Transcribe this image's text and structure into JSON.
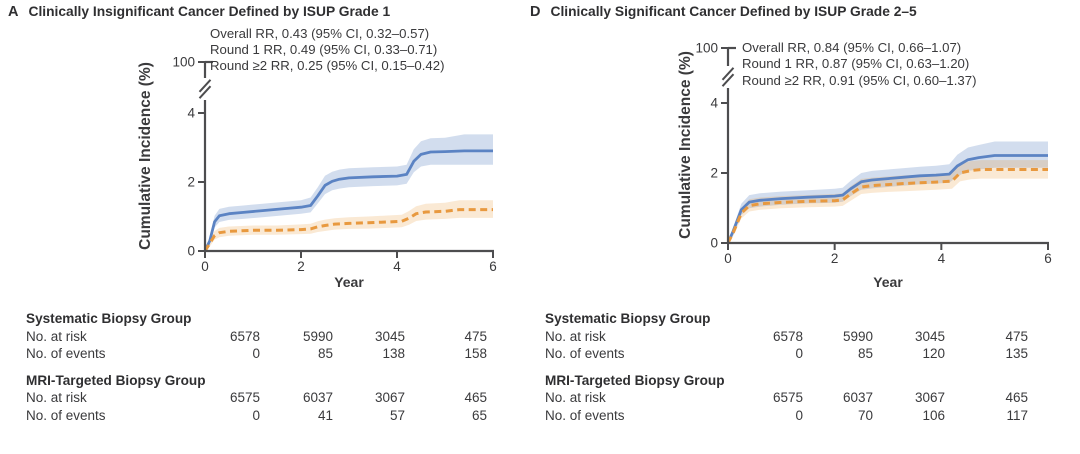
{
  "panels": [
    {
      "letter": "A",
      "title": "Clinically Insignificant Cancer Defined by ISUP Grade 1",
      "table": {
        "groups": [
          {
            "name": "Systematic Biopsy Group",
            "rows": [
              {
                "label": "No. at risk",
                "values": [
                  "6578",
                  "5990",
                  "3045",
                  "475"
                ]
              },
              {
                "label": "No. of events",
                "values": [
                  "0",
                  "85",
                  "138",
                  "158"
                ]
              }
            ]
          },
          {
            "name": "MRI-Targeted Biopsy Group",
            "rows": [
              {
                "label": "No. at risk",
                "values": [
                  "6575",
                  "6037",
                  "3067",
                  "465"
                ]
              },
              {
                "label": "No. of events",
                "values": [
                  "0",
                  "41",
                  "57",
                  "65"
                ]
              }
            ]
          }
        ]
      }
    },
    {
      "letter": "D",
      "title": "Clinically Significant Cancer Defined by ISUP Grade 2–5",
      "table": {
        "groups": [
          {
            "name": "Systematic Biopsy Group",
            "rows": [
              {
                "label": "No. at risk",
                "values": [
                  "6578",
                  "5990",
                  "3045",
                  "475"
                ]
              },
              {
                "label": "No. of events",
                "values": [
                  "0",
                  "85",
                  "120",
                  "135"
                ]
              }
            ]
          },
          {
            "name": "MRI-Targeted Biopsy Group",
            "rows": [
              {
                "label": "No. at risk",
                "values": [
                  "6575",
                  "6037",
                  "3067",
                  "465"
                ]
              },
              {
                "label": "No. of events",
                "values": [
                  "0",
                  "70",
                  "106",
                  "117"
                ]
              }
            ]
          }
        ]
      }
    }
  ],
  "chart_data": [
    {
      "type": "line",
      "title": "Clinically Insignificant Cancer Defined by ISUP Grade 1",
      "xlabel": "Year",
      "ylabel": "Cumulative Incidence (%)",
      "xlim": [
        0,
        6
      ],
      "ylim": [
        0,
        4.7
      ],
      "axis_break_top_label": "100",
      "xticks": [
        0,
        2,
        4,
        6
      ],
      "yticks": [
        0,
        2,
        4
      ],
      "grid": false,
      "legend_position": "none",
      "annotations": [
        "Overall RR, 0.43 (95% CI, 0.32–0.57)",
        "Round 1 RR, 0.49 (95% CI, 0.33–0.71)",
        "Round ≥2 RR, 0.25 (95% CI, 0.15–0.42)"
      ],
      "series": [
        {
          "name": "Systematic Biopsy Group",
          "line_style": "solid",
          "color": "#5b83c3",
          "band_color": "rgba(77,118,188,0.25)",
          "x": [
            0,
            0.1,
            0.2,
            0.3,
            0.5,
            0.8,
            1.2,
            1.6,
            2.0,
            2.2,
            2.35,
            2.5,
            2.65,
            2.8,
            3.0,
            3.5,
            4.0,
            4.2,
            4.35,
            4.5,
            4.7,
            5.0,
            5.4,
            6.0
          ],
          "y": [
            0,
            0.3,
            0.85,
            1.02,
            1.08,
            1.12,
            1.17,
            1.22,
            1.27,
            1.32,
            1.6,
            1.9,
            2.02,
            2.08,
            2.12,
            2.15,
            2.17,
            2.22,
            2.6,
            2.8,
            2.87,
            2.88,
            2.9,
            2.9
          ],
          "band_upper": [
            0,
            0.4,
            1.02,
            1.22,
            1.28,
            1.32,
            1.37,
            1.42,
            1.47,
            1.55,
            1.85,
            2.18,
            2.3,
            2.36,
            2.4,
            2.43,
            2.45,
            2.5,
            2.95,
            3.18,
            3.27,
            3.28,
            3.38,
            3.38
          ],
          "band_lower": [
            0,
            0.2,
            0.68,
            0.84,
            0.9,
            0.93,
            0.98,
            1.03,
            1.08,
            1.12,
            1.38,
            1.65,
            1.76,
            1.81,
            1.85,
            1.88,
            1.9,
            1.95,
            2.28,
            2.45,
            2.5,
            2.5,
            2.5,
            2.5
          ]
        },
        {
          "name": "MRI-Targeted Biopsy Group",
          "line_style": "dashed",
          "color": "#e8993f",
          "band_color": "rgba(231,154,60,0.22)",
          "x": [
            0,
            0.1,
            0.2,
            0.3,
            0.5,
            1.0,
            1.5,
            2.0,
            2.2,
            2.35,
            2.5,
            2.7,
            3.0,
            3.4,
            3.8,
            4.1,
            4.25,
            4.4,
            4.6,
            5.0,
            5.3,
            6.0
          ],
          "y": [
            0,
            0.22,
            0.45,
            0.53,
            0.57,
            0.6,
            0.6,
            0.62,
            0.64,
            0.7,
            0.74,
            0.78,
            0.8,
            0.82,
            0.84,
            0.86,
            0.95,
            1.08,
            1.13,
            1.15,
            1.2,
            1.2
          ],
          "band_upper": [
            0,
            0.32,
            0.58,
            0.67,
            0.71,
            0.74,
            0.74,
            0.77,
            0.79,
            0.86,
            0.91,
            0.95,
            0.98,
            1.0,
            1.03,
            1.05,
            1.16,
            1.3,
            1.37,
            1.4,
            1.47,
            1.47
          ],
          "band_lower": [
            0,
            0.13,
            0.33,
            0.4,
            0.44,
            0.47,
            0.47,
            0.49,
            0.5,
            0.55,
            0.58,
            0.62,
            0.64,
            0.65,
            0.67,
            0.69,
            0.76,
            0.87,
            0.91,
            0.93,
            0.96,
            0.96
          ]
        }
      ]
    },
    {
      "type": "line",
      "title": "Clinically Significant Cancer Defined by ISUP Grade 2–5",
      "xlabel": "Year",
      "ylabel": "Cumulative Incidence (%)",
      "xlim": [
        0,
        6
      ],
      "ylim": [
        0,
        4.7
      ],
      "axis_break_top_label": "100",
      "xticks": [
        0,
        2,
        4,
        6
      ],
      "yticks": [
        0,
        2,
        4
      ],
      "grid": false,
      "legend_position": "none",
      "annotations": [
        "Overall RR, 0.84 (95% CI, 0.66–1.07)",
        "Round 1 RR, 0.87 (95% CI, 0.63–1.20)",
        "Round ≥2 RR, 0.91 (95% CI, 0.60–1.37)"
      ],
      "series": [
        {
          "name": "Systematic Biopsy Group",
          "line_style": "solid",
          "color": "#5b83c3",
          "band_color": "rgba(77,118,188,0.25)",
          "x": [
            0,
            0.1,
            0.25,
            0.4,
            0.6,
            1.0,
            1.5,
            2.0,
            2.15,
            2.3,
            2.5,
            2.7,
            3.0,
            3.3,
            3.6,
            3.9,
            4.15,
            4.3,
            4.5,
            4.7,
            5.0,
            6.0
          ],
          "y": [
            0,
            0.35,
            0.95,
            1.17,
            1.22,
            1.27,
            1.31,
            1.34,
            1.37,
            1.55,
            1.75,
            1.8,
            1.84,
            1.88,
            1.92,
            1.94,
            1.97,
            2.2,
            2.38,
            2.44,
            2.5,
            2.5
          ],
          "band_upper": [
            0,
            0.45,
            1.12,
            1.37,
            1.42,
            1.47,
            1.51,
            1.55,
            1.58,
            1.78,
            2.0,
            2.06,
            2.1,
            2.14,
            2.18,
            2.21,
            2.25,
            2.52,
            2.73,
            2.8,
            2.9,
            2.9
          ],
          "band_lower": [
            0,
            0.25,
            0.8,
            0.99,
            1.04,
            1.09,
            1.13,
            1.15,
            1.18,
            1.34,
            1.52,
            1.56,
            1.6,
            1.64,
            1.68,
            1.7,
            1.72,
            1.9,
            2.06,
            2.1,
            2.15,
            2.15
          ]
        },
        {
          "name": "MRI-Targeted Biopsy Group",
          "line_style": "dashed",
          "color": "#e8993f",
          "band_color": "rgba(231,154,60,0.22)",
          "x": [
            0,
            0.1,
            0.25,
            0.4,
            0.6,
            1.0,
            1.5,
            2.0,
            2.15,
            2.3,
            2.5,
            2.7,
            3.0,
            3.3,
            3.6,
            3.9,
            4.2,
            4.35,
            4.55,
            4.75,
            5.0,
            6.0
          ],
          "y": [
            0,
            0.3,
            0.85,
            1.07,
            1.12,
            1.16,
            1.19,
            1.21,
            1.23,
            1.4,
            1.6,
            1.64,
            1.67,
            1.7,
            1.72,
            1.74,
            1.77,
            2.0,
            2.07,
            2.1,
            2.1,
            2.1
          ],
          "band_upper": [
            0,
            0.4,
            1.0,
            1.25,
            1.3,
            1.34,
            1.37,
            1.4,
            1.42,
            1.62,
            1.83,
            1.87,
            1.9,
            1.93,
            1.95,
            1.98,
            2.01,
            2.26,
            2.34,
            2.37,
            2.37,
            2.37
          ],
          "band_lower": [
            0,
            0.2,
            0.7,
            0.9,
            0.95,
            0.99,
            1.02,
            1.04,
            1.06,
            1.21,
            1.4,
            1.43,
            1.46,
            1.48,
            1.5,
            1.52,
            1.55,
            1.76,
            1.82,
            1.84,
            1.84,
            1.84
          ]
        }
      ]
    }
  ]
}
